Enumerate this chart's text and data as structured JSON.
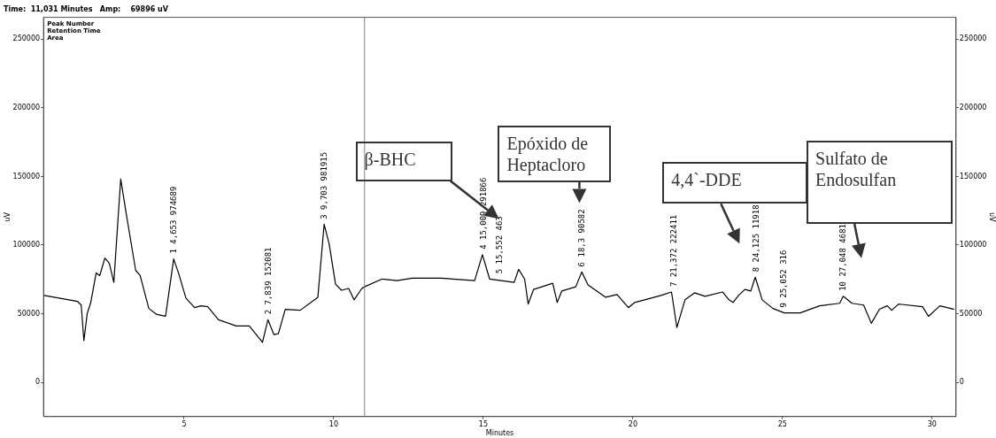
{
  "chart_data": {
    "type": "line",
    "title": "Time:  11,031 Minutes   Amp:    69896 uV",
    "xlabel": "Minutes",
    "ylabel": "uV",
    "y2label": "uV",
    "x": [
      0.32,
      1.44,
      1.56,
      1.65,
      1.76,
      1.88,
      2.06,
      2.18,
      2.35,
      2.5,
      2.65,
      2.88,
      3.09,
      3.38,
      3.53,
      3.82,
      4.09,
      4.38,
      4.65,
      4.82,
      5.06,
      5.35,
      5.56,
      5.79,
      6.15,
      6.74,
      7.18,
      7.41,
      7.62,
      7.8,
      8.0,
      8.15,
      8.38,
      8.88,
      9.47,
      9.68,
      9.85,
      10.06,
      10.26,
      10.5,
      10.68,
      10.94,
      11.03,
      11.62,
      12.12,
      12.62,
      13.59,
      14.71,
      14.97,
      15.21,
      16.03,
      16.18,
      16.38,
      16.5,
      16.68,
      17.32,
      17.47,
      17.62,
      18.09,
      18.29,
      18.5,
      19.09,
      19.47,
      19.85,
      20.06,
      20.94,
      21.29,
      21.47,
      21.74,
      22.06,
      22.41,
      23.0,
      23.21,
      23.35,
      23.53,
      23.74,
      23.94,
      24.09,
      24.32,
      24.68,
      25.06,
      25.59,
      26.24,
      26.91,
      27.03,
      27.32,
      27.71,
      27.97,
      28.24,
      28.5,
      28.65,
      28.88,
      29.68,
      29.88,
      30.26,
      30.74
    ],
    "series": [
      {
        "color": "#000000",
        "values": [
          63300,
          58900,
          56300,
          30400,
          50000,
          58200,
          79700,
          77800,
          90500,
          86700,
          72800,
          148100,
          119600,
          81600,
          77800,
          53800,
          49400,
          48100,
          89900,
          79100,
          61400,
          54400,
          55700,
          55100,
          45600,
          41100,
          41100,
          34800,
          29100,
          45600,
          34800,
          35400,
          53200,
          52500,
          62000,
          115200,
          100600,
          71500,
          67100,
          68400,
          60100,
          68400,
          69600,
          75300,
          74100,
          75900,
          75900,
          74100,
          93000,
          75300,
          72800,
          82300,
          75300,
          57000,
          67700,
          72200,
          58200,
          66500,
          69600,
          80400,
          70900,
          62000,
          63900,
          54400,
          58200,
          63300,
          65800,
          39900,
          60100,
          65200,
          62700,
          65800,
          60100,
          58200,
          63300,
          67700,
          66500,
          76600,
          60100,
          53800,
          50600,
          50600,
          55700,
          57600,
          62700,
          57600,
          56300,
          43000,
          53200,
          55700,
          52500,
          57000,
          55100,
          48100,
          55700,
          53200
        ]
      }
    ],
    "xlim": [
      0.3,
      30.8
    ],
    "xticks": [
      5,
      10,
      15,
      20,
      25,
      30
    ],
    "ylim": [
      -25000,
      266000
    ],
    "yticks": [
      0,
      50000,
      100000,
      150000,
      200000,
      250000
    ],
    "y2lim": [
      -25000,
      266000
    ],
    "y2ticks": [
      0,
      50000,
      100000,
      150000,
      200000,
      250000
    ],
    "ref_lines": [
      {
        "axis": "x",
        "value": 11.031,
        "color": "#808080"
      }
    ],
    "grid": false,
    "legend": false,
    "marker": "none",
    "line_style": "solid",
    "annotations": [
      {
        "text": "1 4,653 974689",
        "x": 4.653,
        "y": 90000
      },
      {
        "text": "2 7,839 152081",
        "x": 7.839,
        "y": 45600
      },
      {
        "text": "3 9,703 981915",
        "x": 9.703,
        "y": 115000
      },
      {
        "text": "4 15,009 291866",
        "x": 15.009,
        "y": 93000
      },
      {
        "text": "5 15,552 463",
        "x": 15.552,
        "y": 75300
      },
      {
        "text": "6 18,3 90582",
        "x": 18.3,
        "y": 80400
      },
      {
        "text": "7 21,372 222411",
        "x": 21.372,
        "y": 65800
      },
      {
        "text": "8 24,125 11918",
        "x": 24.125,
        "y": 76600
      },
      {
        "text": "9 25,052 316",
        "x": 25.052,
        "y": 50600
      },
      {
        "text": "10 27,048 4681",
        "x": 27.048,
        "y": 62700
      },
      "β-BHC",
      "Epóxido de Heptacloro",
      "4,4`-DDE",
      "Sulfato de Endosulfan",
      "Peak Number\nRetention Time\nArea"
    ]
  }
}
